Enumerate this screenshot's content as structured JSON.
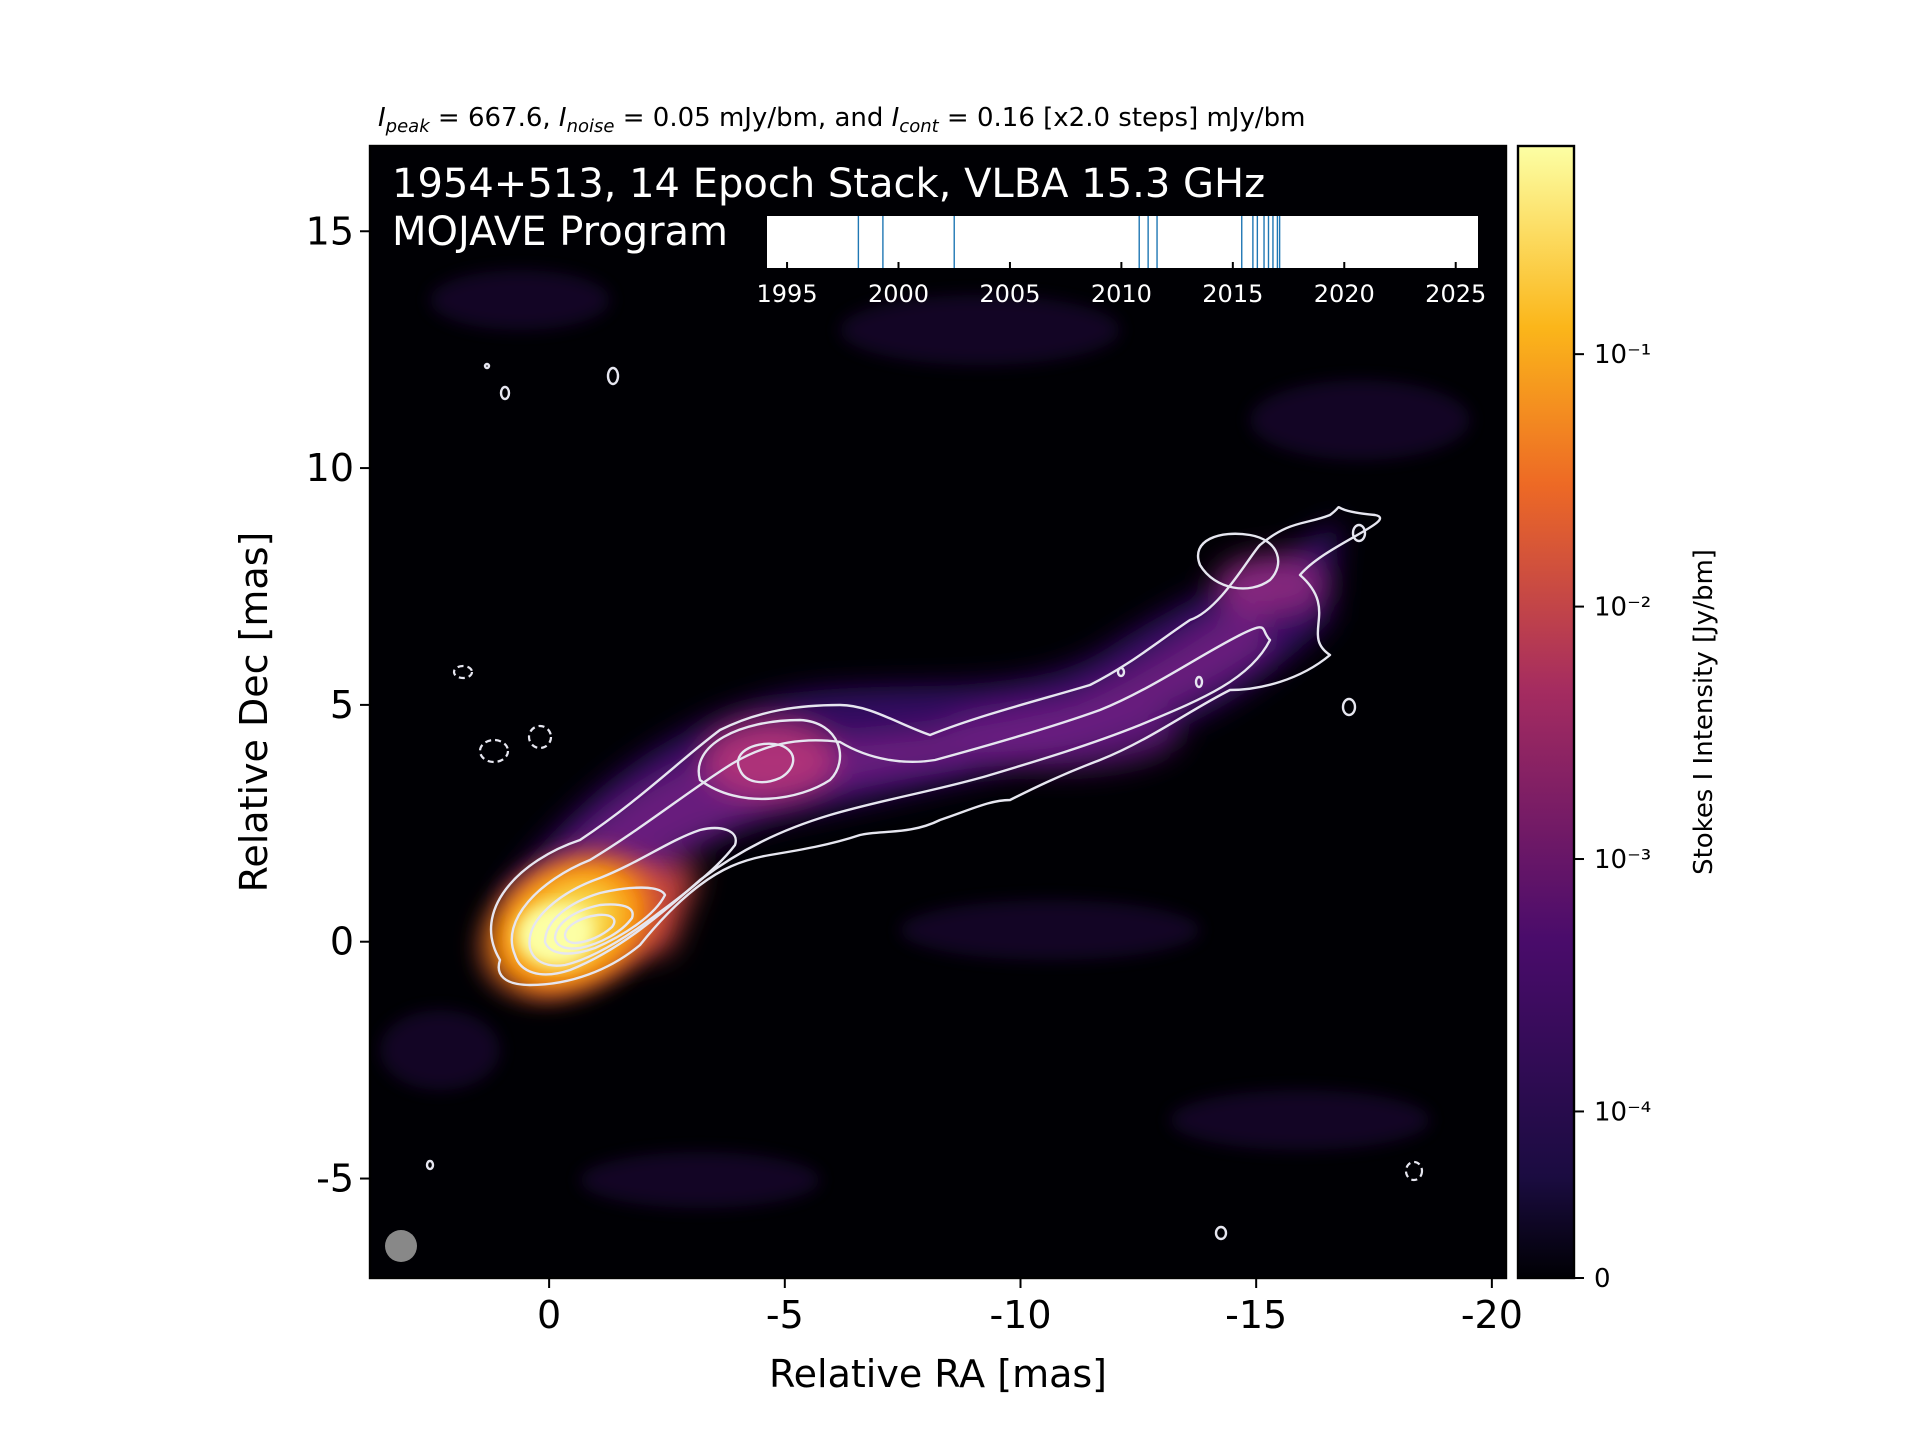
{
  "chart_data": {
    "type": "heatmap",
    "subtitle": {
      "i_peak_label": "I",
      "i_peak_sub": "peak",
      "i_peak_value": " = 667.6, ",
      "i_noise_label": "I",
      "i_noise_sub": "noise",
      "i_noise_value": " = 0.05 mJy/bm, and ",
      "i_cont_label": "I",
      "i_cont_sub": "cont",
      "i_cont_value": " = 0.16 [x2.0 steps] mJy/bm"
    },
    "title_line1": "1954+513, 14 Epoch Stack, VLBA 15.3 GHz",
    "title_line2": "MOJAVE Program",
    "xlabel": "Relative RA [mas]",
    "ylabel": "Relative Dec [mas]",
    "xlim": [
      3.8,
      -20.3
    ],
    "ylim": [
      -7.1,
      16.8
    ],
    "x_ticks": [
      0,
      -5,
      -10,
      -15,
      -20
    ],
    "x_tick_labels": [
      "0",
      "-5",
      "-10",
      "-15",
      "-20"
    ],
    "y_ticks": [
      -5,
      0,
      5,
      10,
      15
    ],
    "y_tick_labels": [
      "-5",
      "0",
      "5",
      "10",
      "15"
    ],
    "grid": false,
    "colorbar": {
      "label": "Stokes I Intensity [Jy/bm]",
      "colormap": "inferno",
      "scale": "log",
      "ticks": [
        {
          "value": 0,
          "label": "0"
        },
        {
          "value": 0.0001,
          "label": "10⁻⁴"
        },
        {
          "value": 0.001,
          "label": "10⁻³"
        },
        {
          "value": 0.01,
          "label": "10⁻²"
        },
        {
          "value": 0.1,
          "label": "10⁻¹"
        }
      ]
    },
    "contour_base_mJy_per_bm": 0.16,
    "contour_step_factor": 2.0,
    "peak_intensity": 667.6,
    "noise_mJy_per_bm": 0.05,
    "epoch_timeline": {
      "ticks": [
        1995,
        2000,
        2005,
        2010,
        2015,
        2020,
        2025
      ],
      "tick_labels": [
        "1995",
        "2000",
        "2005",
        "2010",
        "2015",
        "2020",
        "2025"
      ],
      "range": [
        1994.1,
        2026.0
      ],
      "epochs": [
        1998.2,
        1999.3,
        2002.5,
        2010.8,
        2011.2,
        2011.6,
        2015.4,
        2015.9,
        2016.1,
        2016.4,
        2016.6,
        2016.8,
        2017.0,
        2017.1
      ]
    },
    "colors": {
      "background": "#000004",
      "contour": "#e6e6f0",
      "beam": "#888888",
      "epoch_line": "#1f77b4"
    }
  }
}
